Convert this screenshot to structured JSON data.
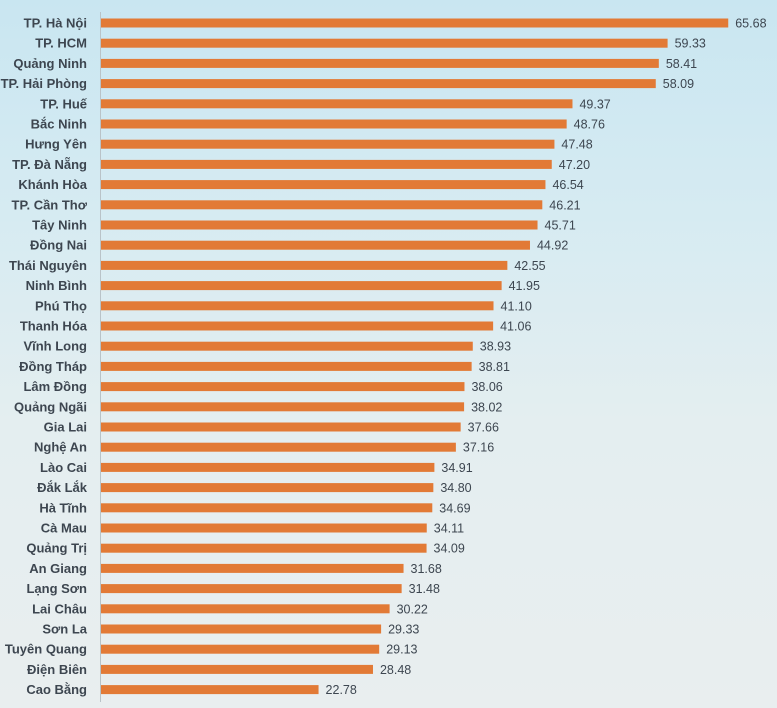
{
  "chart_data": {
    "type": "bar",
    "orientation": "horizontal",
    "categories": [
      "TP. Hà Nội",
      "TP. HCM",
      "Quảng Ninh",
      "TP. Hải Phòng",
      "TP. Huế",
      "Bắc Ninh",
      "Hưng Yên",
      "TP. Đà Nẵng",
      "Khánh Hòa",
      "TP. Cần Thơ",
      "Tây Ninh",
      "Đồng Nai",
      "Thái Nguyên",
      "Ninh Bình",
      "Phú Thọ",
      "Thanh Hóa",
      "Vĩnh Long",
      "Đồng Tháp",
      "Lâm Đồng",
      "Quảng Ngãi",
      "Gia Lai",
      "Nghệ An",
      "Lào Cai",
      "Đắk Lắk",
      "Hà Tĩnh",
      "Cà Mau",
      "Quảng Trị",
      "An Giang",
      "Lạng Sơn",
      "Lai Châu",
      "Sơn La",
      "Tuyên Quang",
      "Điện Biên",
      "Cao Bằng"
    ],
    "values": [
      65.68,
      59.33,
      58.41,
      58.09,
      49.37,
      48.76,
      47.48,
      47.2,
      46.54,
      46.21,
      45.71,
      44.92,
      42.55,
      41.95,
      41.1,
      41.06,
      38.93,
      38.81,
      38.06,
      38.02,
      37.66,
      37.16,
      34.91,
      34.8,
      34.69,
      34.11,
      34.09,
      31.68,
      31.48,
      30.22,
      29.33,
      29.13,
      28.48,
      22.78
    ],
    "value_labels": [
      "65.68",
      "59.33",
      "58.41",
      "58.09",
      "49.37",
      "48.76",
      "47.48",
      "47.20",
      "46.54",
      "46.21",
      "45.71",
      "44.92",
      "42.55",
      "41.95",
      "41.10",
      "41.06",
      "38.93",
      "38.81",
      "38.06",
      "38.02",
      "37.66",
      "37.16",
      "34.91",
      "34.80",
      "34.69",
      "34.11",
      "34.09",
      "31.68",
      "31.48",
      "30.22",
      "29.33",
      "29.13",
      "28.48",
      "22.78"
    ],
    "title": "",
    "xlabel": "",
    "ylabel": "",
    "xlim": [
      0,
      70
    ],
    "grid": false,
    "legend": "none",
    "bar_color": "#e27a36",
    "text_color": "#3d4650"
  }
}
